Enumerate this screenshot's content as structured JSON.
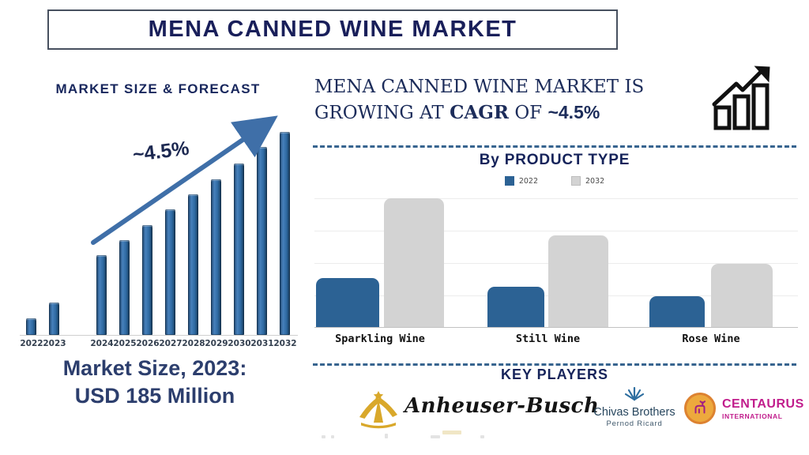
{
  "title": "MENA CANNED WINE MARKET",
  "left_panel": {
    "heading": "MARKET SIZE & FORECAST",
    "growth_label": "~4.5%",
    "market_size_line1": "Market Size, 2023:",
    "market_size_line2": "USD 185 Million"
  },
  "right_panel": {
    "headline": {
      "line1": "MENA CANNED WINE MARKET IS",
      "line2_prefix": "GROWING AT ",
      "cagr_word": "CAGR",
      "of_word": " OF ",
      "pct": "~4.5%"
    },
    "product_section_heading": "By PRODUCT TYPE",
    "key_players_heading": "KEY PLAYERS",
    "key_players": [
      {
        "name": "Anheuser-Busch",
        "subtitle": ""
      },
      {
        "name": "Chivas Brothers",
        "subtitle": "Pernod Ricard"
      },
      {
        "name": "CENTAURUS",
        "subtitle": "INTERNATIONAL"
      }
    ]
  },
  "colors": {
    "navy_text": "#191f5a",
    "steel_blue_arrow": "#3f6fa8",
    "forecast_bar_blue": "#2d68a0",
    "product_bar_blue": "#2c6294",
    "product_bar_gray": "#d3d3d3",
    "magenta_brand": "#c11d8c",
    "gold_brand": "#d9a82b"
  },
  "chart_data": [
    {
      "name": "market-size-forecast",
      "type": "bar",
      "title": "MARKET SIZE & FORECAST",
      "categories": [
        "2022",
        "2023",
        "2024",
        "2025",
        "2026",
        "2027",
        "2028",
        "2029",
        "2030",
        "2031",
        "2032"
      ],
      "values": [
        21,
        41,
        101,
        120,
        139,
        159,
        178,
        197,
        217,
        238,
        257
      ],
      "units": "relative bar height (no value axis shown)",
      "annotation": "~4.5%",
      "xlabel": "Year",
      "ylabel": "",
      "grid": false,
      "note": "visual gap between 2023 and 2024; steel-blue upward trend arrow labeled ~4.5%"
    },
    {
      "name": "by-product-type",
      "type": "bar",
      "title": "By PRODUCT TYPE",
      "categories": [
        "Sparkling Wine",
        "Still Wine",
        "Rose Wine"
      ],
      "series": [
        {
          "name": "2022",
          "color": "#2c6294",
          "values": [
            38,
            31,
            24
          ]
        },
        {
          "name": "2032",
          "color": "#d3d3d3",
          "values": [
            100,
            71,
            49
          ]
        }
      ],
      "units": "relative (no value axis labels shown; estimated % of tallest bar)",
      "legend_position": "top",
      "grid": true
    }
  ]
}
